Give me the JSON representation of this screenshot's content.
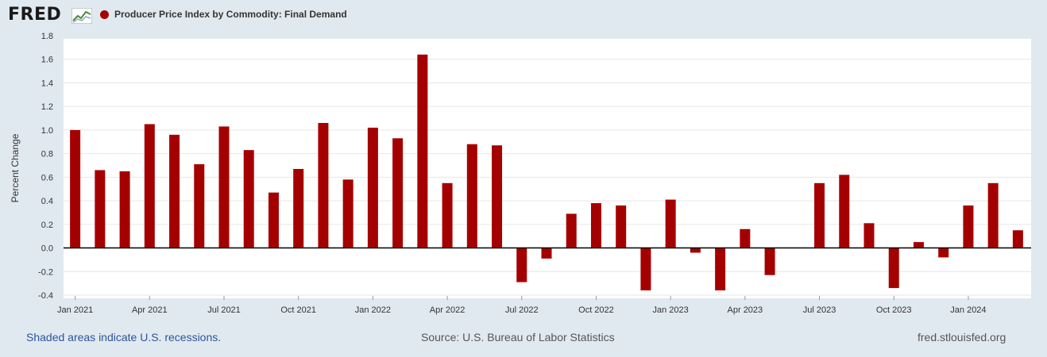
{
  "header": {
    "logo_text": "FRED",
    "series_title": "Producer Price Index by Commodity: Final Demand",
    "legend_color": "#a50000"
  },
  "footer": {
    "recession_note": "Shaded areas indicate U.S. recessions.",
    "source": "Source: U.S. Bureau of Labor Statistics",
    "site": "fred.stlouisfed.org"
  },
  "chart_data": {
    "type": "bar",
    "title": "Producer Price Index by Commodity: Final Demand",
    "xlabel": "",
    "ylabel": "Percent Change",
    "ylim": [
      -0.4,
      1.8
    ],
    "yticks": [
      "-0.4",
      "-0.2",
      "0.0",
      "0.2",
      "0.4",
      "0.6",
      "0.8",
      "1.0",
      "1.2",
      "1.4",
      "1.6",
      "1.8"
    ],
    "grid": true,
    "bar_color": "#a50000",
    "categories": [
      "Jan 2021",
      "Feb 2021",
      "Mar 2021",
      "Apr 2021",
      "May 2021",
      "Jun 2021",
      "Jul 2021",
      "Aug 2021",
      "Sep 2021",
      "Oct 2021",
      "Nov 2021",
      "Dec 2021",
      "Jan 2022",
      "Feb 2022",
      "Mar 2022",
      "Apr 2022",
      "May 2022",
      "Jun 2022",
      "Jul 2022",
      "Aug 2022",
      "Sep 2022",
      "Oct 2022",
      "Nov 2022",
      "Dec 2022",
      "Jan 2023",
      "Feb 2023",
      "Mar 2023",
      "Apr 2023",
      "May 2023",
      "Jun 2023",
      "Jul 2023",
      "Aug 2023",
      "Sep 2023",
      "Oct 2023",
      "Nov 2023",
      "Dec 2023",
      "Jan 2024",
      "Feb 2024",
      "Mar 2024"
    ],
    "x_tick_labels": [
      "Jan 2021",
      "",
      "",
      "Apr 2021",
      "",
      "",
      "Jul 2021",
      "",
      "",
      "Oct 2021",
      "",
      "",
      "Jan 2022",
      "",
      "",
      "Apr 2022",
      "",
      "",
      "Jul 2022",
      "",
      "",
      "Oct 2022",
      "",
      "",
      "Jan 2023",
      "",
      "",
      "Apr 2023",
      "",
      "",
      "Jul 2023",
      "",
      "",
      "Oct 2023",
      "",
      "",
      "Jan 2024",
      "",
      ""
    ],
    "values": [
      1.0,
      0.66,
      0.65,
      1.05,
      0.96,
      0.71,
      1.03,
      0.83,
      0.47,
      0.67,
      1.06,
      0.58,
      1.02,
      0.93,
      1.64,
      0.55,
      0.88,
      0.87,
      -0.29,
      -0.09,
      0.29,
      0.38,
      0.36,
      -0.36,
      0.41,
      -0.04,
      -0.36,
      0.16,
      -0.23,
      0.0,
      0.55,
      0.62,
      0.21,
      -0.34,
      0.05,
      -0.08,
      0.36,
      0.55,
      0.15
    ]
  }
}
